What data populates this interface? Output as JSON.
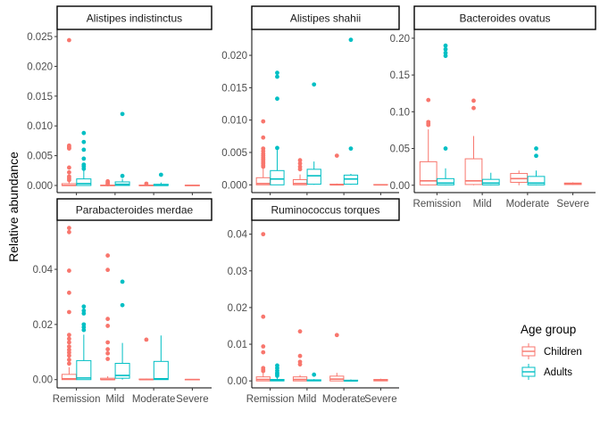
{
  "chart_data": {
    "type": "boxplot",
    "ylabel": "Relative abundance",
    "categories": [
      "Remission",
      "Mild",
      "Moderate",
      "Severe"
    ],
    "legend": {
      "title": "Age group",
      "position": "right",
      "entries": [
        {
          "name": "Children",
          "color": "#f8766d"
        },
        {
          "name": "Adults",
          "color": "#00bfc4"
        }
      ]
    },
    "facets": [
      {
        "title": "Alistipes indistinctus",
        "ylim": [
          -0.0012,
          0.0262
        ],
        "yticks": [
          0,
          0.005,
          0.01,
          0.015,
          0.02,
          0.025
        ],
        "yticklabels": [
          "0.000",
          "0.005",
          "0.010",
          "0.015",
          "0.020",
          "0.025"
        ],
        "show_x_labels": false,
        "groups": [
          {
            "category": "Remission",
            "series": "Children",
            "q1": 0,
            "median": 0,
            "q3": 0.0003,
            "whisker_low": 0,
            "whisker_high": 0.0007,
            "outliers": [
              0.0244,
              0.0067,
              0.0065,
              0.0063,
              0.0062,
              0.003,
              0.0022,
              0.0015,
              0.0012,
              0.0009
            ]
          },
          {
            "category": "Remission",
            "series": "Adults",
            "q1": 0,
            "median": 0.0003,
            "q3": 0.0011,
            "whisker_low": 0,
            "whisker_high": 0.0026,
            "outliers": [
              0.0088,
              0.0073,
              0.006,
              0.0045,
              0.0035,
              0.0032,
              0.0028
            ]
          },
          {
            "category": "Mild",
            "series": "Children",
            "q1": 0,
            "median": 0,
            "q3": 5e-05,
            "whisker_low": 0,
            "whisker_high": 0.0001,
            "outliers": [
              0.0007,
              0.0005,
              0.0003,
              0.0002
            ]
          },
          {
            "category": "Mild",
            "series": "Adults",
            "q1": 0,
            "median": 0.0002,
            "q3": 0.0006,
            "whisker_low": 0,
            "whisker_high": 0.0011,
            "outliers": [
              0.012,
              0.0016
            ]
          },
          {
            "category": "Moderate",
            "series": "Children",
            "q1": 0,
            "median": 0,
            "q3": 5e-05,
            "whisker_low": 0,
            "whisker_high": 0.0001,
            "outliers": [
              0.0003
            ]
          },
          {
            "category": "Moderate",
            "series": "Adults",
            "q1": 0,
            "median": 0,
            "q3": 0.0002,
            "whisker_low": 0,
            "whisker_high": 0.0005,
            "outliers": [
              0.0018
            ]
          },
          {
            "category": "Severe",
            "series": "Children",
            "q1": 0,
            "median": 0,
            "q3": 5e-05,
            "whisker_low": 0,
            "whisker_high": 0.0001,
            "outliers": []
          }
        ]
      },
      {
        "title": "Alistipes shahii",
        "ylim": [
          -0.0012,
          0.024
        ],
        "yticks": [
          0,
          0.005,
          0.01,
          0.015,
          0.02
        ],
        "yticklabels": [
          "0.000",
          "0.005",
          "0.010",
          "0.015",
          "0.020"
        ],
        "show_x_labels": false,
        "groups": [
          {
            "category": "Remission",
            "series": "Children",
            "q1": 0,
            "median": 0.0002,
            "q3": 0.0011,
            "whisker_low": 0,
            "whisker_high": 0.0026,
            "outliers": [
              0.0098,
              0.0073,
              0.0056,
              0.0052,
              0.0048,
              0.0045,
              0.0042,
              0.004,
              0.0038,
              0.0035,
              0.0033,
              0.003,
              0.0028
            ]
          },
          {
            "category": "Remission",
            "series": "Adults",
            "q1": 0,
            "median": 0.0009,
            "q3": 0.0022,
            "whisker_low": 0,
            "whisker_high": 0.0054,
            "outliers": [
              0.0173,
              0.0167,
              0.0133,
              0.0057
            ]
          },
          {
            "category": "Mild",
            "series": "Children",
            "q1": 0,
            "median": 0.0002,
            "q3": 0.0008,
            "whisker_low": 0,
            "whisker_high": 0.0016,
            "outliers": [
              0.0038,
              0.0033,
              0.0028,
              0.0024
            ]
          },
          {
            "category": "Mild",
            "series": "Adults",
            "q1": 0.0001,
            "median": 0.0014,
            "q3": 0.0024,
            "whisker_low": 0,
            "whisker_high": 0.0036,
            "outliers": [
              0.0155
            ]
          },
          {
            "category": "Moderate",
            "series": "Children",
            "q1": 0,
            "median": 0,
            "q3": 0.0001,
            "whisker_low": 0,
            "whisker_high": 0.0002,
            "outliers": [
              0.0045
            ]
          },
          {
            "category": "Moderate",
            "series": "Adults",
            "q1": 0.0001,
            "median": 0.0009,
            "q3": 0.0015,
            "whisker_low": 0,
            "whisker_high": 0.0017,
            "outliers": [
              0.0224,
              0.0056
            ]
          },
          {
            "category": "Severe",
            "series": "Children",
            "q1": 0,
            "median": 0,
            "q3": 5e-05,
            "whisker_low": 0,
            "whisker_high": 0.0001,
            "outliers": []
          }
        ]
      },
      {
        "title": "Bacteroides ovatus",
        "ylim": [
          -0.01,
          0.212
        ],
        "yticks": [
          0,
          0.05,
          0.1,
          0.15,
          0.2
        ],
        "yticklabels": [
          "0.00",
          "0.05",
          "0.10",
          "0.15",
          "0.20"
        ],
        "show_x_labels": true,
        "groups": [
          {
            "category": "Remission",
            "series": "Children",
            "q1": 0.0005,
            "median": 0.006,
            "q3": 0.032,
            "whisker_low": 0,
            "whisker_high": 0.076,
            "outliers": [
              0.116,
              0.086,
              0.084,
              0.082
            ]
          },
          {
            "category": "Remission",
            "series": "Adults",
            "q1": 0.0005,
            "median": 0.003,
            "q3": 0.009,
            "whisker_low": 0,
            "whisker_high": 0.023,
            "outliers": [
              0.19,
              0.185,
              0.18,
              0.176,
              0.05
            ]
          },
          {
            "category": "Mild",
            "series": "Children",
            "q1": 0.001,
            "median": 0.006,
            "q3": 0.036,
            "whisker_low": 0,
            "whisker_high": 0.067,
            "outliers": [
              0.115,
              0.105
            ]
          },
          {
            "category": "Mild",
            "series": "Adults",
            "q1": 0.0005,
            "median": 0.003,
            "q3": 0.008,
            "whisker_low": 0,
            "whisker_high": 0.017,
            "outliers": []
          },
          {
            "category": "Moderate",
            "series": "Children",
            "q1": 0.004,
            "median": 0.009,
            "q3": 0.016,
            "whisker_low": 0,
            "whisker_high": 0.02,
            "outliers": []
          },
          {
            "category": "Moderate",
            "series": "Adults",
            "q1": 0.0005,
            "median": 0.003,
            "q3": 0.012,
            "whisker_low": 0,
            "whisker_high": 0.02,
            "outliers": [
              0.05,
              0.04
            ]
          },
          {
            "category": "Severe",
            "series": "Children",
            "q1": 0.001,
            "median": 0.002,
            "q3": 0.003,
            "whisker_low": 0.0005,
            "whisker_high": 0.004,
            "outliers": []
          }
        ]
      },
      {
        "title": "Parabacteroides merdae",
        "ylim": [
          -0.003,
          0.0578
        ],
        "yticks": [
          0,
          0.02,
          0.04
        ],
        "yticklabels": [
          "0.00",
          "0.02",
          "0.04"
        ],
        "show_x_labels": true,
        "groups": [
          {
            "category": "Remission",
            "series": "Children",
            "q1": 0,
            "median": 0.0003,
            "q3": 0.0019,
            "whisker_low": 0,
            "whisker_high": 0.0045,
            "outliers": [
              0.055,
              0.0535,
              0.0395,
              0.0315,
              0.0245,
              0.0162,
              0.0148,
              0.0135,
              0.012,
              0.0108,
              0.0098,
              0.0087,
              0.0072,
              0.0058
            ]
          },
          {
            "category": "Remission",
            "series": "Adults",
            "q1": 0,
            "median": 0.0006,
            "q3": 0.0069,
            "whisker_low": 0,
            "whisker_high": 0.0163,
            "outliers": [
              0.0265,
              0.025,
              0.024,
              0.02,
              0.019,
              0.018
            ]
          },
          {
            "category": "Mild",
            "series": "Children",
            "q1": 0,
            "median": 0,
            "q3": 0.0005,
            "whisker_low": 0,
            "whisker_high": 0.0012,
            "outliers": [
              0.045,
              0.0398,
              0.022,
              0.0195,
              0.0135,
              0.011,
              0.0095,
              0.0075
            ]
          },
          {
            "category": "Mild",
            "series": "Adults",
            "q1": 0.0005,
            "median": 0.0015,
            "q3": 0.0059,
            "whisker_low": 0,
            "whisker_high": 0.0133,
            "outliers": [
              0.0355,
              0.027
            ]
          },
          {
            "category": "Moderate",
            "series": "Children",
            "q1": 0,
            "median": 0,
            "q3": 0.0002,
            "whisker_low": 0,
            "whisker_high": 0.0004,
            "outliers": [
              0.0145
            ]
          },
          {
            "category": "Moderate",
            "series": "Adults",
            "q1": 0,
            "median": 0.0003,
            "q3": 0.0066,
            "whisker_low": 0,
            "whisker_high": 0.016,
            "outliers": []
          },
          {
            "category": "Severe",
            "series": "Children",
            "q1": 0,
            "median": 0,
            "q3": 0.0001,
            "whisker_low": 0,
            "whisker_high": 0.0002,
            "outliers": []
          }
        ]
      },
      {
        "title": "Ruminococcus torques",
        "ylim": [
          -0.0019,
          0.0438
        ],
        "yticks": [
          0,
          0.01,
          0.02,
          0.03,
          0.04
        ],
        "yticklabels": [
          "0.00",
          "0.01",
          "0.02",
          "0.03",
          "0.04"
        ],
        "show_x_labels": true,
        "groups": [
          {
            "category": "Remission",
            "series": "Children",
            "q1": 0,
            "median": 0.0004,
            "q3": 0.0011,
            "whisker_low": 0,
            "whisker_high": 0.0024,
            "outliers": [
              0.04,
              0.0175,
              0.0094,
              0.0078,
              0.0035,
              0.003,
              0.0027
            ]
          },
          {
            "category": "Remission",
            "series": "Adults",
            "q1": 0,
            "median": 0.0001,
            "q3": 0.0004,
            "whisker_low": 0,
            "whisker_high": 0.0009,
            "outliers": [
              0.0042,
              0.0035,
              0.0028,
              0.0022,
              0.0018,
              0.0014
            ]
          },
          {
            "category": "Mild",
            "series": "Children",
            "q1": 0,
            "median": 0.0004,
            "q3": 0.0011,
            "whisker_low": 0,
            "whisker_high": 0.0016,
            "outliers": [
              0.0135,
              0.0068,
              0.0052,
              0.0045
            ]
          },
          {
            "category": "Mild",
            "series": "Adults",
            "q1": 0,
            "median": 0.0001,
            "q3": 0.0003,
            "whisker_low": 0,
            "whisker_high": 0.0005,
            "outliers": [
              0.0017
            ]
          },
          {
            "category": "Moderate",
            "series": "Children",
            "q1": 0,
            "median": 0.0005,
            "q3": 0.0013,
            "whisker_low": 0,
            "whisker_high": 0.0022,
            "outliers": [
              0.0125
            ]
          },
          {
            "category": "Moderate",
            "series": "Adults",
            "q1": 0,
            "median": 0,
            "q3": 0.0002,
            "whisker_low": 0,
            "whisker_high": 0.0004,
            "outliers": []
          },
          {
            "category": "Severe",
            "series": "Children",
            "q1": 0,
            "median": 0.0002,
            "q3": 0.0004,
            "whisker_low": 0,
            "whisker_high": 0.0006,
            "outliers": []
          }
        ]
      }
    ]
  }
}
